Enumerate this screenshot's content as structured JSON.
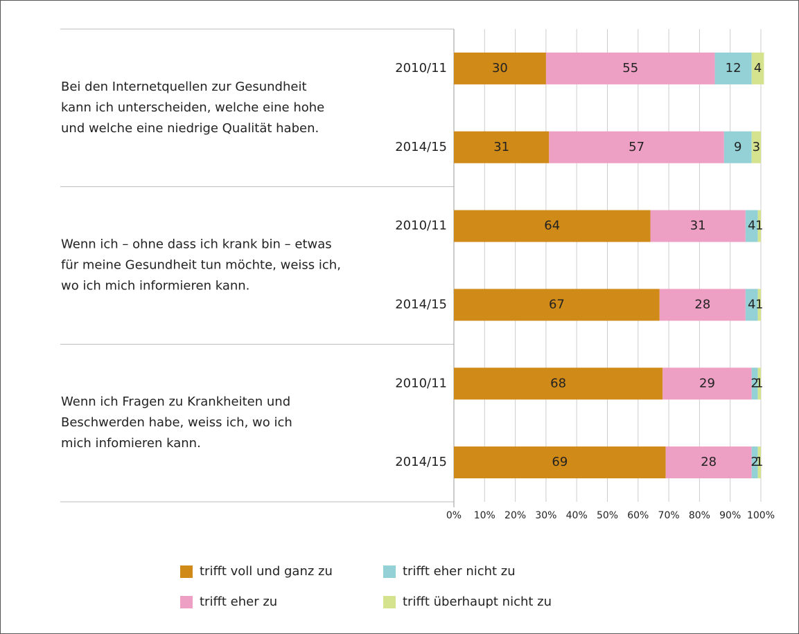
{
  "chart_data": {
    "type": "bar",
    "orientation": "horizontal",
    "stacked": true,
    "categories": [
      "2010/11",
      "2014/15",
      "2010/11",
      "2014/15",
      "2010/11",
      "2014/15"
    ],
    "groups": [
      {
        "lines": [
          "Bei den Internetquellen zur Gesundheit",
          "kann ich unterscheiden, welche eine hohe",
          "und welche eine niedrige Qualität haben."
        ]
      },
      {
        "lines": [
          "Wenn ich – ohne dass ich krank bin – etwas",
          "für meine Gesundheit tun möchte, weiss ich,",
          "wo ich mich informieren kann."
        ]
      },
      {
        "lines": [
          "Wenn ich Fragen zu Krankheiten und",
          "Beschwerden habe, weiss ich, wo ich",
          "mich infomieren kann."
        ]
      }
    ],
    "series": [
      {
        "name": "trifft voll und ganz zu",
        "color": "#d08a17",
        "values": [
          30,
          31,
          64,
          67,
          68,
          69
        ]
      },
      {
        "name": "trifft eher zu",
        "color": "#eea0c4",
        "values": [
          55,
          57,
          31,
          28,
          29,
          28
        ]
      },
      {
        "name": "trifft eher nicht zu",
        "color": "#93d1d6",
        "values": [
          12,
          9,
          4,
          4,
          2,
          2
        ]
      },
      {
        "name": "trifft überhaupt nicht zu",
        "color": "#d6e38e",
        "values": [
          4,
          3,
          1,
          1,
          1,
          1
        ]
      }
    ],
    "xlim": [
      0,
      100
    ],
    "xticks": [
      {
        "value": 0,
        "label": "0%"
      },
      {
        "value": 10,
        "label": "10%"
      },
      {
        "value": 20,
        "label": "20%"
      },
      {
        "value": 30,
        "label": "30%"
      },
      {
        "value": 40,
        "label": "40%"
      },
      {
        "value": 50,
        "label": "50%"
      },
      {
        "value": 60,
        "label": "60%"
      },
      {
        "value": 70,
        "label": "70%"
      },
      {
        "value": 80,
        "label": "80%"
      },
      {
        "value": 90,
        "label": "90%"
      },
      {
        "value": 100,
        "label": "100%"
      }
    ],
    "grid": true,
    "legend": "bottom"
  }
}
